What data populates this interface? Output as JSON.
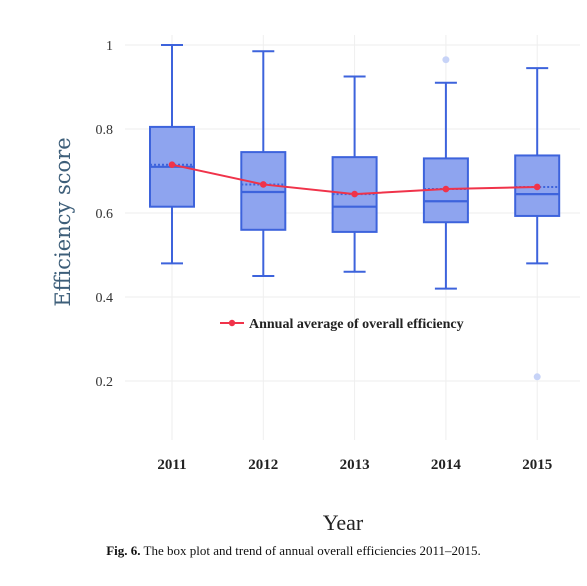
{
  "chart_data": {
    "type": "box",
    "xlabel": "Year",
    "ylabel": "Efficiency score",
    "ylim": [
      0.05,
      1.02
    ],
    "yticks": [
      0.2,
      0.4,
      0.6,
      0.8,
      1
    ],
    "ytick_labels": [
      "0.2",
      "0.4",
      "0.6",
      "0.8",
      "1"
    ],
    "grid": true,
    "categories": [
      "2011",
      "2012",
      "2013",
      "2014",
      "2015"
    ],
    "boxes": [
      {
        "year": "2011",
        "min": 0.48,
        "q1": 0.615,
        "median": 0.71,
        "q3": 0.805,
        "max": 1.0,
        "mean": 0.715,
        "outliers": []
      },
      {
        "year": "2012",
        "min": 0.45,
        "q1": 0.56,
        "median": 0.65,
        "q3": 0.745,
        "max": 0.985,
        "mean": 0.668,
        "outliers": []
      },
      {
        "year": "2013",
        "min": 0.46,
        "q1": 0.555,
        "median": 0.615,
        "q3": 0.733,
        "max": 0.925,
        "mean": 0.645,
        "outliers": []
      },
      {
        "year": "2014",
        "min": 0.42,
        "q1": 0.578,
        "median": 0.628,
        "q3": 0.73,
        "max": 0.91,
        "mean": 0.657,
        "outliers": [
          0.965
        ]
      },
      {
        "year": "2015",
        "min": 0.48,
        "q1": 0.593,
        "median": 0.645,
        "q3": 0.737,
        "max": 0.945,
        "mean": 0.662,
        "outliers": [
          0.21
        ]
      }
    ],
    "trend_series": {
      "name": "Annual average of overall efficiency",
      "values": [
        0.715,
        0.668,
        0.645,
        0.657,
        0.662
      ]
    },
    "legend_placement": "center",
    "colors": {
      "box_fill": "#8ea4ef",
      "box_stroke": "#3d63dc",
      "trend_line": "#f0334a",
      "outlier": "#c7d3f7",
      "grid": "#eeeeee",
      "ylabel": "#3e5f7a"
    }
  },
  "caption": {
    "label": "Fig. 6.",
    "text": " The box plot and trend of annual overall efficiencies 2011–2015."
  }
}
